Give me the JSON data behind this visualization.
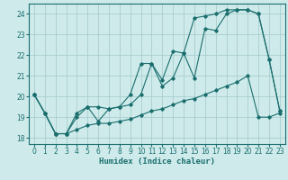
{
  "xlabel": "Humidex (Indice chaleur)",
  "xlim": [
    -0.5,
    23.5
  ],
  "ylim": [
    17.7,
    24.5
  ],
  "yticks": [
    18,
    19,
    20,
    21,
    22,
    23,
    24
  ],
  "xticks": [
    0,
    1,
    2,
    3,
    4,
    5,
    6,
    7,
    8,
    9,
    10,
    11,
    12,
    13,
    14,
    15,
    16,
    17,
    18,
    19,
    20,
    21,
    22,
    23
  ],
  "bg_color": "#ceeaea",
  "grid_color": "#aacece",
  "line_color": "#1a6e6e",
  "line1_y": [
    20.1,
    19.2,
    18.2,
    18.2,
    19.0,
    19.5,
    18.8,
    19.4,
    19.5,
    19.6,
    20.1,
    21.6,
    20.5,
    20.9,
    22.1,
    20.9,
    23.3,
    23.2,
    24.0,
    24.2,
    24.2,
    24.0,
    21.8,
    19.3
  ],
  "line2_y": [
    20.1,
    19.2,
    18.2,
    18.2,
    19.2,
    19.5,
    19.5,
    19.4,
    19.5,
    20.1,
    21.6,
    21.6,
    20.8,
    22.2,
    22.1,
    23.8,
    23.9,
    24.0,
    24.2,
    24.2,
    24.2,
    24.0,
    21.8,
    19.3
  ],
  "line3_y": [
    20.1,
    19.2,
    18.2,
    18.2,
    18.4,
    18.6,
    18.7,
    18.7,
    18.8,
    18.9,
    19.1,
    19.3,
    19.4,
    19.6,
    19.8,
    19.9,
    20.1,
    20.3,
    20.5,
    20.7,
    21.0,
    19.0,
    19.0,
    19.2
  ]
}
